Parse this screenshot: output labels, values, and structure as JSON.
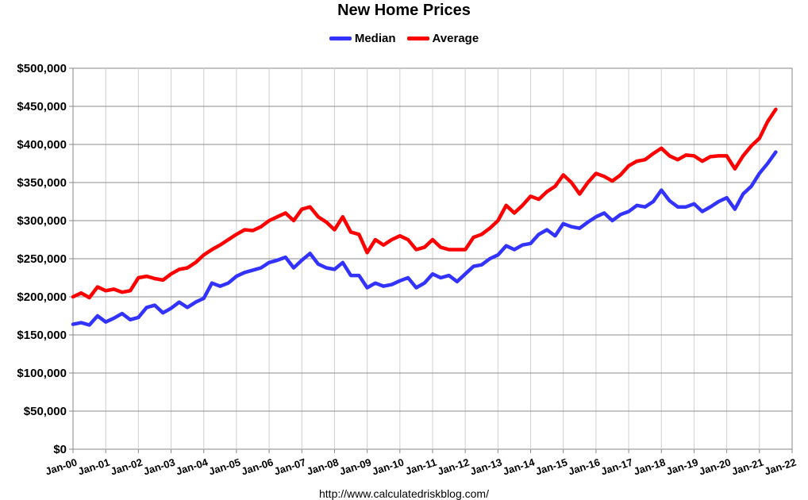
{
  "chart_data": {
    "type": "line",
    "title": "New Home Prices",
    "source": "http://www.calculatedriskblog.com/",
    "y_ticks": [
      "$0",
      "$50,000",
      "$100,000",
      "$150,000",
      "$200,000",
      "$250,000",
      "$300,000",
      "$350,000",
      "$400,000",
      "$450,000",
      "$500,000"
    ],
    "x_ticks": [
      "Jan-00",
      "Jan-01",
      "Jan-02",
      "Jan-03",
      "Jan-04",
      "Jan-05",
      "Jan-06",
      "Jan-07",
      "Jan-08",
      "Jan-09",
      "Jan-10",
      "Jan-11",
      "Jan-12",
      "Jan-13",
      "Jan-14",
      "Jan-15",
      "Jan-16",
      "Jan-17",
      "Jan-18",
      "Jan-19",
      "Jan-20",
      "Jan-21",
      "Jan-22"
    ],
    "ylim": [
      0,
      500000
    ],
    "xlim": [
      "2000-01",
      "2022-01"
    ],
    "grid": true,
    "legend_position": "top",
    "series": [
      {
        "name": "Median",
        "color": "#3333ff",
        "points": [
          [
            "2000-01",
            164000
          ],
          [
            "2000-04",
            166000
          ],
          [
            "2000-07",
            163000
          ],
          [
            "2000-10",
            175000
          ],
          [
            "2001-01",
            167000
          ],
          [
            "2001-04",
            172000
          ],
          [
            "2001-07",
            178000
          ],
          [
            "2001-10",
            170000
          ],
          [
            "2002-01",
            173000
          ],
          [
            "2002-04",
            186000
          ],
          [
            "2002-07",
            189000
          ],
          [
            "2002-10",
            179000
          ],
          [
            "2003-01",
            185000
          ],
          [
            "2003-04",
            193000
          ],
          [
            "2003-07",
            186000
          ],
          [
            "2003-10",
            193000
          ],
          [
            "2004-01",
            198000
          ],
          [
            "2004-04",
            218000
          ],
          [
            "2004-07",
            214000
          ],
          [
            "2004-10",
            218000
          ],
          [
            "2005-01",
            227000
          ],
          [
            "2005-04",
            232000
          ],
          [
            "2005-07",
            235000
          ],
          [
            "2005-10",
            238000
          ],
          [
            "2006-01",
            245000
          ],
          [
            "2006-04",
            248000
          ],
          [
            "2006-07",
            252000
          ],
          [
            "2006-10",
            238000
          ],
          [
            "2007-01",
            248000
          ],
          [
            "2007-04",
            257000
          ],
          [
            "2007-07",
            243000
          ],
          [
            "2007-10",
            238000
          ],
          [
            "2008-01",
            236000
          ],
          [
            "2008-04",
            245000
          ],
          [
            "2008-07",
            228000
          ],
          [
            "2008-10",
            228000
          ],
          [
            "2009-01",
            212000
          ],
          [
            "2009-04",
            218000
          ],
          [
            "2009-07",
            214000
          ],
          [
            "2009-10",
            216000
          ],
          [
            "2010-01",
            221000
          ],
          [
            "2010-04",
            225000
          ],
          [
            "2010-07",
            212000
          ],
          [
            "2010-10",
            218000
          ],
          [
            "2011-01",
            230000
          ],
          [
            "2011-04",
            225000
          ],
          [
            "2011-07",
            228000
          ],
          [
            "2011-10",
            220000
          ],
          [
            "2012-01",
            230000
          ],
          [
            "2012-04",
            240000
          ],
          [
            "2012-07",
            242000
          ],
          [
            "2012-10",
            250000
          ],
          [
            "2013-01",
            255000
          ],
          [
            "2013-04",
            267000
          ],
          [
            "2013-07",
            262000
          ],
          [
            "2013-10",
            268000
          ],
          [
            "2014-01",
            270000
          ],
          [
            "2014-04",
            282000
          ],
          [
            "2014-07",
            288000
          ],
          [
            "2014-10",
            280000
          ],
          [
            "2015-01",
            296000
          ],
          [
            "2015-04",
            292000
          ],
          [
            "2015-07",
            290000
          ],
          [
            "2015-10",
            298000
          ],
          [
            "2016-01",
            305000
          ],
          [
            "2016-04",
            310000
          ],
          [
            "2016-07",
            300000
          ],
          [
            "2016-10",
            308000
          ],
          [
            "2017-01",
            312000
          ],
          [
            "2017-04",
            320000
          ],
          [
            "2017-07",
            318000
          ],
          [
            "2017-10",
            325000
          ],
          [
            "2018-01",
            340000
          ],
          [
            "2018-04",
            326000
          ],
          [
            "2018-07",
            318000
          ],
          [
            "2018-10",
            318000
          ],
          [
            "2019-01",
            322000
          ],
          [
            "2019-04",
            312000
          ],
          [
            "2019-07",
            318000
          ],
          [
            "2019-10",
            325000
          ],
          [
            "2020-01",
            330000
          ],
          [
            "2020-04",
            315000
          ],
          [
            "2020-07",
            335000
          ],
          [
            "2020-10",
            345000
          ],
          [
            "2021-01",
            362000
          ],
          [
            "2021-04",
            375000
          ],
          [
            "2021-07",
            390000
          ]
        ]
      },
      {
        "name": "Average",
        "color": "#ff0000",
        "points": [
          [
            "2000-01",
            200000
          ],
          [
            "2000-04",
            205000
          ],
          [
            "2000-07",
            199000
          ],
          [
            "2000-10",
            213000
          ],
          [
            "2001-01",
            208000
          ],
          [
            "2001-04",
            210000
          ],
          [
            "2001-07",
            206000
          ],
          [
            "2001-10",
            208000
          ],
          [
            "2002-01",
            225000
          ],
          [
            "2002-04",
            227000
          ],
          [
            "2002-07",
            224000
          ],
          [
            "2002-10",
            222000
          ],
          [
            "2003-01",
            230000
          ],
          [
            "2003-04",
            236000
          ],
          [
            "2003-07",
            238000
          ],
          [
            "2003-10",
            245000
          ],
          [
            "2004-01",
            255000
          ],
          [
            "2004-04",
            262000
          ],
          [
            "2004-07",
            268000
          ],
          [
            "2004-10",
            275000
          ],
          [
            "2005-01",
            282000
          ],
          [
            "2005-04",
            288000
          ],
          [
            "2005-07",
            287000
          ],
          [
            "2005-10",
            292000
          ],
          [
            "2006-01",
            300000
          ],
          [
            "2006-04",
            305000
          ],
          [
            "2006-07",
            310000
          ],
          [
            "2006-10",
            300000
          ],
          [
            "2007-01",
            315000
          ],
          [
            "2007-04",
            318000
          ],
          [
            "2007-07",
            305000
          ],
          [
            "2007-10",
            298000
          ],
          [
            "2008-01",
            288000
          ],
          [
            "2008-04",
            305000
          ],
          [
            "2008-07",
            285000
          ],
          [
            "2008-10",
            282000
          ],
          [
            "2009-01",
            258000
          ],
          [
            "2009-04",
            275000
          ],
          [
            "2009-07",
            268000
          ],
          [
            "2009-10",
            275000
          ],
          [
            "2010-01",
            280000
          ],
          [
            "2010-04",
            275000
          ],
          [
            "2010-07",
            262000
          ],
          [
            "2010-10",
            265000
          ],
          [
            "2011-01",
            275000
          ],
          [
            "2011-04",
            265000
          ],
          [
            "2011-07",
            262000
          ],
          [
            "2011-10",
            262000
          ],
          [
            "2012-01",
            262000
          ],
          [
            "2012-04",
            278000
          ],
          [
            "2012-07",
            282000
          ],
          [
            "2012-10",
            290000
          ],
          [
            "2013-01",
            300000
          ],
          [
            "2013-04",
            320000
          ],
          [
            "2013-07",
            310000
          ],
          [
            "2013-10",
            320000
          ],
          [
            "2014-01",
            332000
          ],
          [
            "2014-04",
            328000
          ],
          [
            "2014-07",
            338000
          ],
          [
            "2014-10",
            345000
          ],
          [
            "2015-01",
            360000
          ],
          [
            "2015-04",
            350000
          ],
          [
            "2015-07",
            335000
          ],
          [
            "2015-10",
            350000
          ],
          [
            "2016-01",
            362000
          ],
          [
            "2016-04",
            358000
          ],
          [
            "2016-07",
            352000
          ],
          [
            "2016-10",
            360000
          ],
          [
            "2017-01",
            372000
          ],
          [
            "2017-04",
            378000
          ],
          [
            "2017-07",
            380000
          ],
          [
            "2017-10",
            388000
          ],
          [
            "2018-01",
            395000
          ],
          [
            "2018-04",
            385000
          ],
          [
            "2018-07",
            380000
          ],
          [
            "2018-10",
            386000
          ],
          [
            "2019-01",
            385000
          ],
          [
            "2019-04",
            378000
          ],
          [
            "2019-07",
            384000
          ],
          [
            "2019-10",
            385000
          ],
          [
            "2020-01",
            385000
          ],
          [
            "2020-04",
            368000
          ],
          [
            "2020-07",
            385000
          ],
          [
            "2020-10",
            398000
          ],
          [
            "2021-01",
            408000
          ],
          [
            "2021-04",
            430000
          ],
          [
            "2021-07",
            446000
          ]
        ]
      }
    ]
  }
}
